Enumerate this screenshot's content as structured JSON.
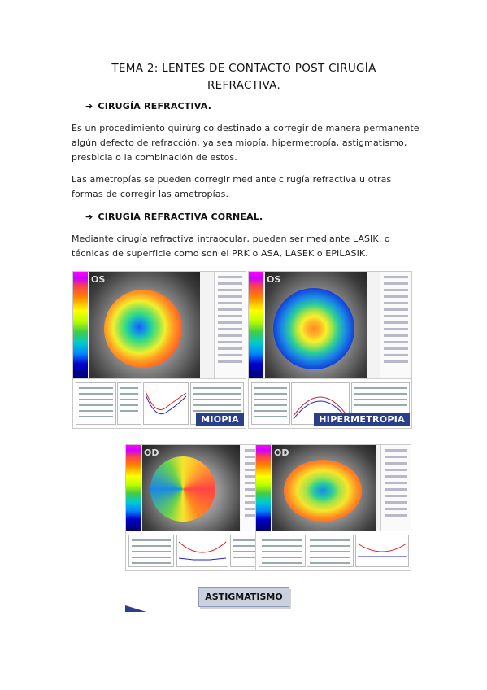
{
  "document": {
    "title_line1": "TEMA 2: LENTES DE CONTACTO POST CIRUGÍA",
    "title_line2": "REFRACTIVA.",
    "section1": {
      "heading": "CIRUGÍA REFRACTIVA.",
      "paragraphs": [
        "Es un procedimiento quirúrgico destinado a corregir de manera permanente algún defecto de refracción, ya sea miopía, hipermetropía, astigmatismo, presbicia o la combinación de estos.",
        "Las ametropías se pueden corregir mediante cirugía refractiva u otras formas de corregir las ametropías."
      ]
    },
    "section2": {
      "heading": "CIRUGÍA REFRACTIVA CORNEAL.",
      "paragraph": "Mediante cirugía refractiva intraocular, pueden ser mediante LASIK, o técnicas de superficie como son el PRK o ASA, LASEK o EPILASIK."
    },
    "figures": {
      "miopia": {
        "label": "MIOPIA",
        "eye_tag": "OS"
      },
      "hipermetropia": {
        "label": "HIPERMETROPIA",
        "eye_tag": "OS"
      },
      "astig_left": {
        "eye_tag": "OD"
      },
      "astig_right": {
        "eye_tag": "OD"
      },
      "astigmatismo": {
        "label": "ASTIGMATISMO"
      }
    }
  },
  "colors": {
    "label_bg": "#2a3f8a",
    "astig_bg": "#c9d1de"
  }
}
